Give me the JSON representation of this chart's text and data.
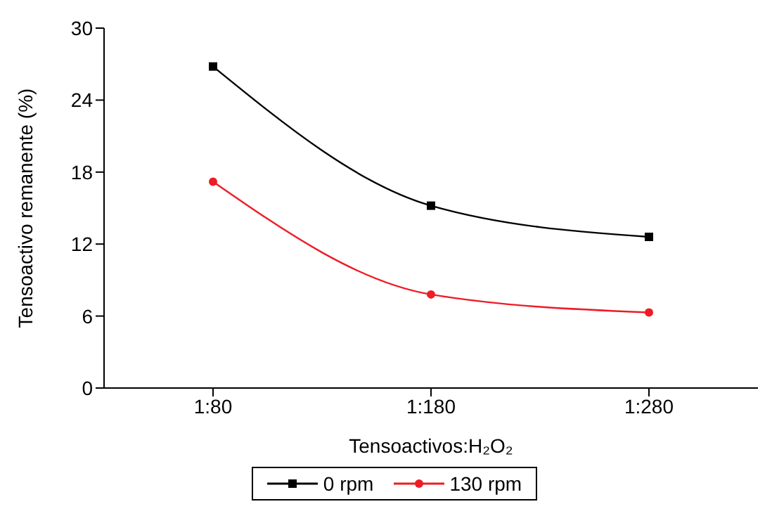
{
  "chart_data": {
    "type": "line",
    "xlabel": "Tensoactivos:H₂O₂",
    "ylabel": "Tensoactivo remanente (%)",
    "categories": [
      "1:80",
      "1:180",
      "1:280"
    ],
    "series": [
      {
        "name": "0 rpm",
        "color": "#000000",
        "values": [
          26.8,
          15.2,
          12.6
        ],
        "marker": "square"
      },
      {
        "name": "130 rpm",
        "color": "#ee1c25",
        "values": [
          17.2,
          7.8,
          6.3
        ],
        "marker": "circle"
      }
    ],
    "ylim": [
      0,
      30
    ],
    "yticks": [
      0,
      6,
      12,
      18,
      24,
      30
    ],
    "grid": false,
    "legend": "bottom",
    "line_style": "solid"
  }
}
